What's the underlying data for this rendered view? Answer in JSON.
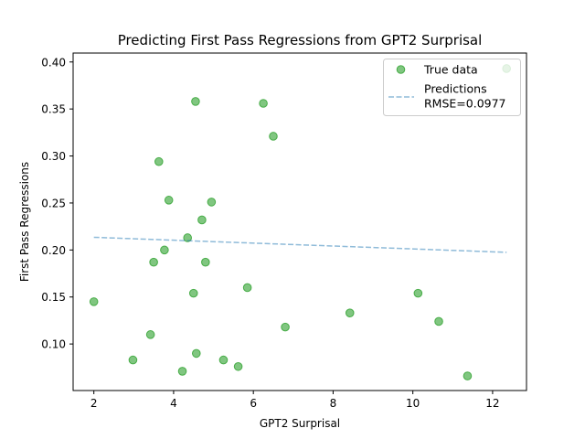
{
  "chart_data": {
    "type": "scatter",
    "title": "Predicting First Pass Regressions from GPT2 Surprisal",
    "xlabel": "GPT2 Surprisal",
    "ylabel": "First Pass Regressions",
    "xlim": [
      1.48,
      12.85
    ],
    "ylim": [
      0.0505,
      0.4095
    ],
    "xticks": [
      2,
      4,
      6,
      8,
      10,
      12
    ],
    "yticks": [
      0.1,
      0.15,
      0.2,
      0.25,
      0.3,
      0.35,
      0.4
    ],
    "xtick_labels": [
      "2",
      "4",
      "6",
      "8",
      "10",
      "12"
    ],
    "ytick_labels": [
      "0.10",
      "0.15",
      "0.20",
      "0.25",
      "0.30",
      "0.35",
      "0.40"
    ],
    "grid": false,
    "legend_position": "top-right",
    "series": [
      {
        "name": "True data",
        "kind": "scatter",
        "color": "#2ca02c",
        "points": [
          [
            2.0,
            0.145
          ],
          [
            2.98,
            0.083
          ],
          [
            3.42,
            0.11
          ],
          [
            3.5,
            0.187
          ],
          [
            3.63,
            0.294
          ],
          [
            3.77,
            0.2
          ],
          [
            3.88,
            0.253
          ],
          [
            4.22,
            0.071
          ],
          [
            4.35,
            0.213
          ],
          [
            4.5,
            0.154
          ],
          [
            4.55,
            0.358
          ],
          [
            4.57,
            0.09
          ],
          [
            4.71,
            0.232
          ],
          [
            4.8,
            0.187
          ],
          [
            4.95,
            0.251
          ],
          [
            5.25,
            0.083
          ],
          [
            5.62,
            0.076
          ],
          [
            5.85,
            0.16
          ],
          [
            6.25,
            0.356
          ],
          [
            6.5,
            0.321
          ],
          [
            6.8,
            0.118
          ],
          [
            8.42,
            0.133
          ],
          [
            10.13,
            0.154
          ],
          [
            10.65,
            0.124
          ],
          [
            11.37,
            0.066
          ],
          [
            12.35,
            0.393
          ]
        ]
      },
      {
        "name": "Predictions\nRMSE=0.0977",
        "kind": "line",
        "style": "dashed",
        "color": "#1f77b4",
        "points": [
          [
            2.0,
            0.2135
          ],
          [
            12.35,
            0.1975
          ]
        ]
      }
    ]
  }
}
